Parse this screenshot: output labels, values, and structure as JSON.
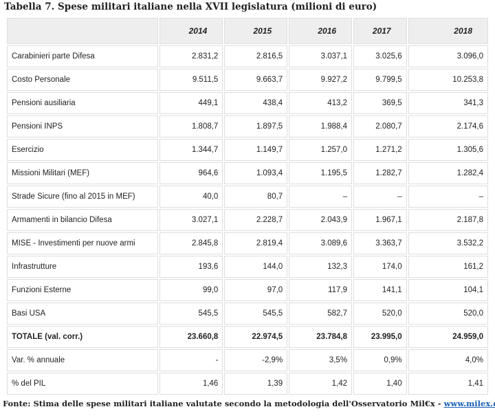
{
  "title": "Tabella 7. Spese militari italiane nella XVII legislatura (milioni di euro)",
  "table": {
    "header": [
      "2014",
      "2015",
      "2016",
      "2017",
      "2018"
    ],
    "rows": [
      [
        "Carabinieri parte Difesa",
        "2.831,2",
        "2.816,5",
        "3.037,1",
        "3.025,6",
        "3.096,0"
      ],
      [
        "Costo Personale",
        "9.511,5",
        "9.663,7",
        "9.927,2",
        "9.799,5",
        "10.253,8"
      ],
      [
        "Pensioni ausiliaria",
        "449,1",
        "438,4",
        "413,2",
        "369,5",
        "341,3"
      ],
      [
        "Pensioni INPS",
        "1.808,7",
        "1.897,5",
        "1.988,4",
        "2.080,7",
        "2.174,6"
      ],
      [
        "Esercizio",
        "1.344,7",
        "1.149,7",
        "1.257,0",
        "1.271,2",
        "1.305,6"
      ],
      [
        "Missioni Militari (MEF)",
        "964,6",
        "1.093,4",
        "1.195,5",
        "1.282,7",
        "1.282,4"
      ],
      [
        "Strade Sicure (fino al 2015 in MEF)",
        "40,0",
        "80,7",
        "–",
        "–",
        "–"
      ],
      [
        "Armamenti in bilancio Difesa",
        "3.027,1",
        "2.228,7",
        "2.043,9",
        "1.967,1",
        "2.187,8"
      ],
      [
        "MISE - Investimenti per nuove armi",
        "2.845,8",
        "2.819,4",
        "3.089,6",
        "3.363,7",
        "3.532,2"
      ],
      [
        "Infrastrutture",
        "193,6",
        "144,0",
        "132,3",
        "174,0",
        "161,2"
      ],
      [
        "Funzioni Esterne",
        "99,0",
        "97,0",
        "117,9",
        "141,1",
        "104,1"
      ],
      [
        "Basi USA",
        "545,5",
        "545,5",
        "582,7",
        "520,0",
        "520,0"
      ],
      [
        "TOTALE (val. corr.)",
        "23.660,8",
        "22.974,5",
        "23.784,8",
        "23.995,0",
        "24.959,0"
      ],
      [
        "Var. % annuale",
        "-",
        "-2,9%",
        "3,5%",
        "0,9%",
        "4,0%"
      ],
      [
        "% del PIL",
        "1,46",
        "1,39",
        "1,42",
        "1,40",
        "1,41"
      ]
    ]
  },
  "footer": {
    "text": "Fonte: Stima delle spese militari italiane valutate secondo la metodologia dell'Osservatorio Mil€x - ",
    "link": "www.milex.org"
  }
}
